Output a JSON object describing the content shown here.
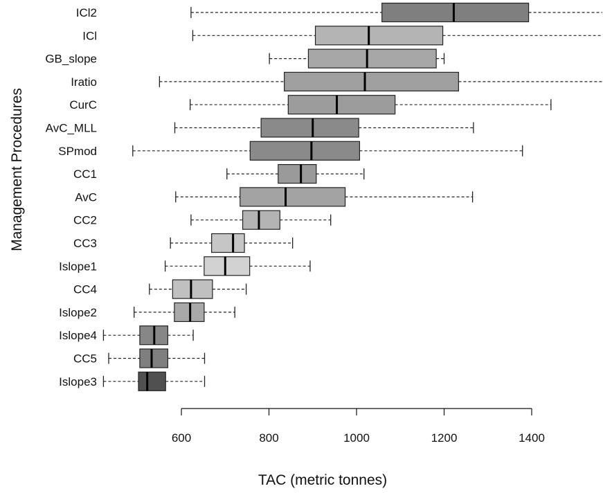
{
  "chart_data": {
    "type": "boxplot",
    "orientation": "horizontal",
    "title": "",
    "xlabel": "TAC (metric tonnes)",
    "ylabel": "Management Procedures",
    "xlim": [
      420,
      1590
    ],
    "xticks": [
      600,
      800,
      1000,
      1200,
      1400
    ],
    "grid": false,
    "categories": [
      "ICl2",
      "ICl",
      "GB_slope",
      "Iratio",
      "CurC",
      "AvC_MLL",
      "SPmod",
      "CC1",
      "AvC",
      "CC2",
      "CC3",
      "Islope1",
      "CC4",
      "Islope2",
      "Islope4",
      "CC5",
      "Islope3"
    ],
    "boxes": [
      {
        "name": "ICl2",
        "whisker_low": 622,
        "q1": 1058,
        "median": 1222,
        "q3": 1393,
        "whisker_high": 1590,
        "color": "#7f7f7f"
      },
      {
        "name": "ICl",
        "whisker_low": 626,
        "q1": 906,
        "median": 1028,
        "q3": 1197,
        "whisker_high": 1590,
        "color": "#b4b4b4"
      },
      {
        "name": "GB_slope",
        "whisker_low": 801,
        "q1": 890,
        "median": 1024,
        "q3": 1182,
        "whisker_high": 1200,
        "color": "#a7a7a7"
      },
      {
        "name": "Iratio",
        "whisker_low": 550,
        "q1": 835,
        "median": 1019,
        "q3": 1233,
        "whisker_high": 1590,
        "color": "#9f9f9f"
      },
      {
        "name": "CurC",
        "whisker_low": 620,
        "q1": 844,
        "median": 955,
        "q3": 1088,
        "whisker_high": 1444,
        "color": "#9c9c9c"
      },
      {
        "name": "AvC_MLL",
        "whisker_low": 585,
        "q1": 782,
        "median": 900,
        "q3": 1005,
        "whisker_high": 1267,
        "color": "#8a8a8a"
      },
      {
        "name": "SPmod",
        "whisker_low": 489,
        "q1": 757,
        "median": 897,
        "q3": 1007,
        "whisker_high": 1379,
        "color": "#8a8a8a"
      },
      {
        "name": "CC1",
        "whisker_low": 704,
        "q1": 821,
        "median": 873,
        "q3": 908,
        "whisker_high": 1017,
        "color": "#9a9a9a"
      },
      {
        "name": "AvC",
        "whisker_low": 587,
        "q1": 734,
        "median": 838,
        "q3": 974,
        "whisker_high": 1265,
        "color": "#a3a3a3"
      },
      {
        "name": "CC2",
        "whisker_low": 622,
        "q1": 740,
        "median": 777,
        "q3": 825,
        "whisker_high": 941,
        "color": "#b4b4b4"
      },
      {
        "name": "CC3",
        "whisker_low": 575,
        "q1": 669,
        "median": 718,
        "q3": 744,
        "whisker_high": 854,
        "color": "#c6c6c6"
      },
      {
        "name": "Islope1",
        "whisker_low": 563,
        "q1": 652,
        "median": 700,
        "q3": 756,
        "whisker_high": 894,
        "color": "#d2d2d2"
      },
      {
        "name": "CC4",
        "whisker_low": 527,
        "q1": 580,
        "median": 622,
        "q3": 671,
        "whisker_high": 748,
        "color": "#c0c0c0"
      },
      {
        "name": "Islope2",
        "whisker_low": 492,
        "q1": 584,
        "median": 620,
        "q3": 652,
        "whisker_high": 722,
        "color": "#a9a9a9"
      },
      {
        "name": "Islope4",
        "whisker_low": 422,
        "q1": 505,
        "median": 538,
        "q3": 569,
        "whisker_high": 627,
        "color": "#878787"
      },
      {
        "name": "CC5",
        "whisker_low": 434,
        "q1": 505,
        "median": 532,
        "q3": 569,
        "whisker_high": 653,
        "color": "#7f7f7f"
      },
      {
        "name": "Islope3",
        "whisker_low": 422,
        "q1": 502,
        "median": 522,
        "q3": 564,
        "whisker_high": 653,
        "color": "#505050"
      }
    ]
  }
}
